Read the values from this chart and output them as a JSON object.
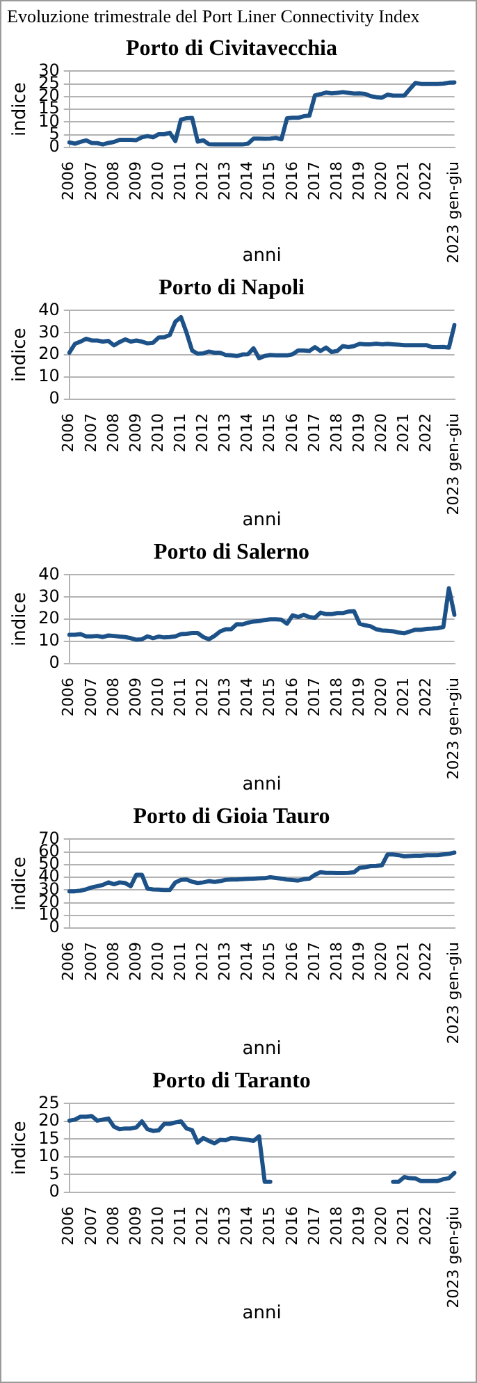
{
  "chart_data": [
    {
      "type": "line",
      "title": "Porto di Civitavecchia",
      "xlabel": "anni",
      "ylabel": "indice",
      "annotations": [
        "Evoluzione trimestrale del Port Liner Connectivity Index"
      ],
      "color": "#1d5289",
      "ylim": [
        0,
        30
      ],
      "yticks": [
        0,
        5,
        10,
        15,
        20,
        25,
        30
      ],
      "grid": "y",
      "legend": false,
      "categories": [
        "2006",
        null,
        null,
        null,
        "2007",
        null,
        null,
        null,
        "2008",
        null,
        null,
        null,
        "2009",
        null,
        null,
        null,
        "2010",
        null,
        null,
        null,
        "2011",
        null,
        null,
        null,
        "2012",
        null,
        null,
        null,
        "2013",
        null,
        null,
        null,
        "2014",
        null,
        null,
        null,
        "2015",
        null,
        null,
        null,
        "2016",
        null,
        null,
        null,
        "2017",
        null,
        null,
        null,
        "2018",
        null,
        null,
        null,
        "2019",
        null,
        null,
        null,
        "2020",
        null,
        null,
        null,
        "2021",
        null,
        null,
        null,
        "2022",
        null,
        null,
        null,
        null,
        "2023 gen-giu"
      ],
      "values": [
        2,
        1.5,
        2.2,
        2.8,
        1.8,
        1.7,
        1.2,
        1.8,
        2.2,
        3,
        3,
        3,
        2.9,
        4,
        4.5,
        4,
        5.2,
        5.2,
        5.8,
        2.5,
        11,
        11.5,
        11.6,
        2.3,
        2.8,
        1.3,
        1.2,
        1.2,
        1.2,
        1.2,
        1.2,
        1.2,
        1.5,
        3.5,
        3.5,
        3.4,
        3.5,
        3.8,
        3.2,
        11.5,
        11.7,
        11.7,
        12.3,
        12.5,
        20.5,
        21,
        21.6,
        21.3,
        21.5,
        21.8,
        21.5,
        21.2,
        21.3,
        21.1,
        20.2,
        19.8,
        19.6,
        20.8,
        20.4,
        20.4,
        20.4,
        23,
        25.4,
        25,
        25,
        25,
        25,
        25.1,
        25.5,
        25.6
      ]
    },
    {
      "type": "line",
      "title": "Porto di Napoli",
      "xlabel": "anni",
      "ylabel": "indice",
      "color": "#1d5289",
      "ylim": [
        0,
        40
      ],
      "yticks": [
        0,
        10,
        20,
        30,
        40
      ],
      "grid": "y",
      "legend": false,
      "categories": [
        "2006",
        null,
        null,
        null,
        "2007",
        null,
        null,
        null,
        "2008",
        null,
        null,
        null,
        "2009",
        null,
        null,
        null,
        "2010",
        null,
        null,
        null,
        "2011",
        null,
        null,
        null,
        "2012",
        null,
        null,
        null,
        "2013",
        null,
        null,
        null,
        "2014",
        null,
        null,
        null,
        "2015",
        null,
        null,
        null,
        "2016",
        null,
        null,
        null,
        "2017",
        null,
        null,
        null,
        "2018",
        null,
        null,
        null,
        "2019",
        null,
        null,
        null,
        "2020",
        null,
        null,
        null,
        "2021",
        null,
        null,
        null,
        "2022",
        null,
        null,
        null,
        null,
        "2023 gen-giu"
      ],
      "values": [
        21,
        25,
        26,
        27.3,
        26.5,
        26.5,
        26,
        26.3,
        24.3,
        25.8,
        27,
        26,
        26.5,
        26,
        25.2,
        25.5,
        27.8,
        28,
        29,
        35,
        37,
        30,
        22,
        20.5,
        20.7,
        21.5,
        21,
        21,
        20,
        19.8,
        19.5,
        20.2,
        20.3,
        23,
        18.5,
        19.5,
        20,
        19.8,
        19.8,
        19.8,
        20.3,
        22,
        22,
        21.8,
        23.5,
        21.8,
        23.3,
        21.3,
        21.8,
        24,
        23.5,
        24,
        25,
        24.8,
        24.8,
        25.1,
        24.8,
        25,
        24.8,
        24.6,
        24.4,
        24.4,
        24.4,
        24.4,
        24.4,
        23.5,
        23.5,
        23.6,
        23.3,
        33.5
      ]
    },
    {
      "type": "line",
      "title": "Porto di Salerno",
      "xlabel": "anni",
      "ylabel": "indice",
      "color": "#1d5289",
      "ylim": [
        0,
        40
      ],
      "yticks": [
        0,
        10,
        20,
        30,
        40
      ],
      "grid": "y",
      "legend": false,
      "categories": [
        "2006",
        null,
        null,
        null,
        "2007",
        null,
        null,
        null,
        "2008",
        null,
        null,
        null,
        "2009",
        null,
        null,
        null,
        "2010",
        null,
        null,
        null,
        "2011",
        null,
        null,
        null,
        "2012",
        null,
        null,
        null,
        "2013",
        null,
        null,
        null,
        "2014",
        null,
        null,
        null,
        "2015",
        null,
        null,
        null,
        "2016",
        null,
        null,
        null,
        "2017",
        null,
        null,
        null,
        "2018",
        null,
        null,
        null,
        "2019",
        null,
        null,
        null,
        "2020",
        null,
        null,
        null,
        "2021",
        null,
        null,
        null,
        "2022",
        null,
        null,
        null,
        null,
        "2023 gen-giu"
      ],
      "values": [
        13,
        13,
        13.3,
        12.3,
        12.3,
        12.5,
        12,
        12.7,
        12.5,
        12.2,
        12,
        11.5,
        10.8,
        11,
        12.3,
        11.5,
        12.2,
        11.8,
        12,
        12.3,
        13.3,
        13.5,
        13.8,
        13.8,
        12,
        11,
        12.5,
        14.5,
        15.5,
        15.5,
        17.8,
        17.7,
        18.5,
        19,
        19.2,
        19.7,
        20,
        20,
        19.8,
        18,
        21.8,
        21,
        22,
        21,
        20.7,
        23,
        22.3,
        22.3,
        22.8,
        22.8,
        23.5,
        23.7,
        18,
        17.3,
        16.8,
        15.5,
        15,
        14.8,
        14.6,
        14,
        13.7,
        14.5,
        15.3,
        15.3,
        15.7,
        15.8,
        16,
        16.5,
        34,
        22
      ]
    },
    {
      "type": "line",
      "title": "Porto di Gioia Tauro",
      "xlabel": "anni",
      "ylabel": "indice",
      "color": "#1d5289",
      "ylim": [
        0,
        70
      ],
      "yticks": [
        0,
        10,
        20,
        30,
        40,
        50,
        60,
        70
      ],
      "grid": "y",
      "legend": false,
      "categories": [
        "2006",
        null,
        null,
        null,
        "2007",
        null,
        null,
        null,
        "2008",
        null,
        null,
        null,
        "2009",
        null,
        null,
        null,
        "2010",
        null,
        null,
        null,
        "2011",
        null,
        null,
        null,
        "2012",
        null,
        null,
        null,
        "2013",
        null,
        null,
        null,
        "2014",
        null,
        null,
        null,
        "2015",
        null,
        null,
        null,
        "2016",
        null,
        null,
        null,
        "2017",
        null,
        null,
        null,
        "2018",
        null,
        null,
        null,
        "2019",
        null,
        null,
        null,
        "2020",
        null,
        null,
        null,
        "2021",
        null,
        null,
        null,
        "2022",
        null,
        null,
        null,
        null,
        "2023 gen-giu"
      ],
      "values": [
        29,
        29,
        29.5,
        30.5,
        32,
        33,
        34,
        36,
        34.5,
        36,
        35.5,
        33,
        42,
        42,
        31,
        30.5,
        30.3,
        30,
        30,
        36,
        38,
        38.3,
        36.5,
        35.5,
        36,
        37,
        36.3,
        37,
        38,
        38.3,
        38.3,
        38.5,
        38.8,
        39,
        39.2,
        39.3,
        40,
        39.5,
        39,
        38.2,
        37.8,
        37.5,
        38.5,
        39,
        42,
        44,
        43.5,
        43.5,
        43.3,
        43.3,
        43.5,
        44,
        47.5,
        48,
        48.8,
        49,
        49.5,
        58,
        58,
        57.5,
        56.5,
        56.8,
        57,
        57,
        57.5,
        57.5,
        57.5,
        58,
        58.5,
        59.5
      ]
    },
    {
      "type": "line",
      "title": "Porto di Taranto",
      "xlabel": "anni",
      "ylabel": "indice",
      "color": "#1d5289",
      "ylim": [
        0,
        25
      ],
      "yticks": [
        0,
        5,
        10,
        15,
        20,
        25
      ],
      "grid": "y",
      "legend": false,
      "categories": [
        "2006",
        null,
        null,
        null,
        "2007",
        null,
        null,
        null,
        "2008",
        null,
        null,
        null,
        "2009",
        null,
        null,
        null,
        "2010",
        null,
        null,
        null,
        "2011",
        null,
        null,
        null,
        "2012",
        null,
        null,
        null,
        "2013",
        null,
        null,
        null,
        "2014",
        null,
        null,
        null,
        "2015",
        null,
        null,
        null,
        "2016",
        null,
        null,
        null,
        "2017",
        null,
        null,
        null,
        "2018",
        null,
        null,
        null,
        "2019",
        null,
        null,
        null,
        "2020",
        null,
        null,
        null,
        "2021",
        null,
        null,
        null,
        "2022",
        null,
        null,
        null,
        null,
        "2023 gen-giu"
      ],
      "values": [
        20.2,
        20.5,
        21.3,
        21.3,
        21.5,
        20.2,
        20.5,
        20.8,
        18.5,
        17.8,
        18,
        18,
        18.3,
        20,
        17.8,
        17.3,
        17.5,
        19.3,
        19.3,
        19.7,
        20,
        18,
        17.5,
        14,
        15.3,
        14.5,
        13.8,
        14.8,
        14.7,
        15.3,
        15.2,
        15,
        14.8,
        14.5,
        15.8,
        3,
        3,
        null,
        null,
        null,
        null,
        null,
        null,
        null,
        null,
        null,
        null,
        null,
        null,
        null,
        null,
        null,
        null,
        null,
        null,
        null,
        null,
        null,
        3,
        3,
        4.3,
        4,
        3.9,
        3.2,
        3.2,
        3.2,
        3.2,
        3.7,
        4,
        5.5
      ]
    }
  ]
}
